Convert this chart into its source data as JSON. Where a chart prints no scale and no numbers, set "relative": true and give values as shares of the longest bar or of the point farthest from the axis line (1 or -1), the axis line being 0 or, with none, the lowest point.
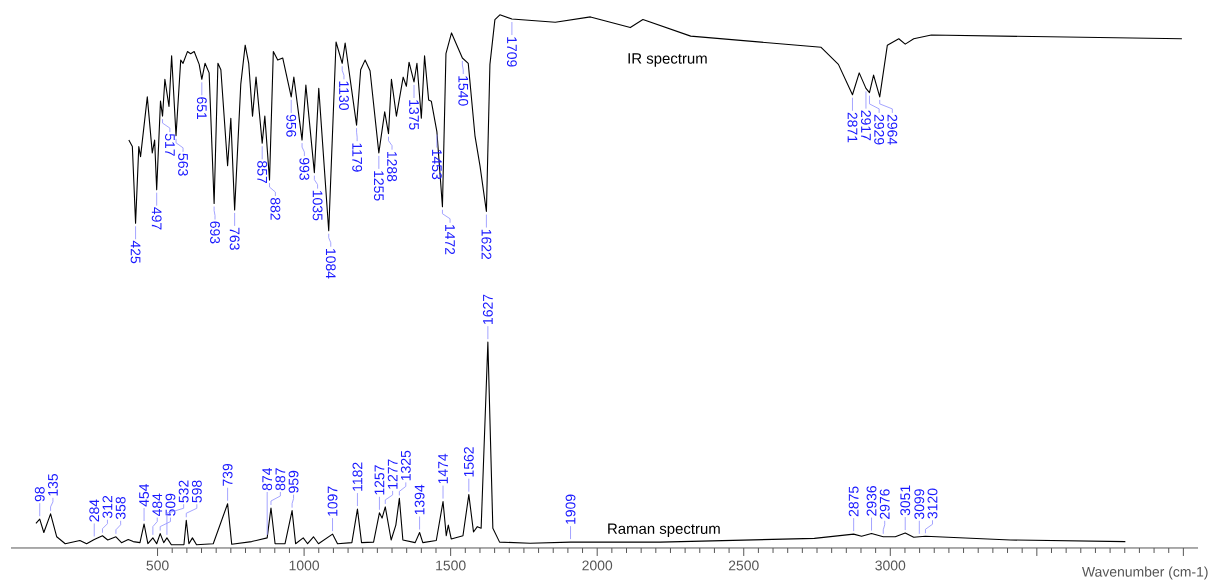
{
  "chart_data": {
    "type": "line",
    "relative": true,
    "xlim": [
      0,
      4050
    ],
    "xlabel": "Wavenumber (cm-1)",
    "xticks": [
      500,
      1000,
      1500,
      2000,
      2500,
      3000,
      {
        "value": 3500,
        "label": null
      },
      {
        "value": 4000,
        "label": null
      }
    ],
    "series": [
      {
        "name": "IR spectrum",
        "color": "#000000",
        "x": [
          402,
          414,
          425,
          436,
          442,
          465,
          482,
          490,
          497,
          510,
          517,
          525,
          539,
          548,
          563,
          579,
          587,
          602,
          613,
          625,
          642,
          651,
          662,
          676,
          693,
          706,
          716,
          739,
          750,
          763,
          784,
          799,
          811,
          824,
          836,
          857,
          866,
          882,
          895,
          910,
          927,
          956,
          965,
          993,
          1006,
          1035,
          1050,
          1084,
          1109,
          1130,
          1140,
          1179,
          1193,
          1208,
          1225,
          1255,
          1275,
          1288,
          1298,
          1315,
          1338,
          1349,
          1358,
          1375,
          1385,
          1400,
          1411,
          1425,
          1434,
          1453,
          1472,
          1484,
          1503,
          1540,
          1560,
          1583,
          1600,
          1622,
          1634,
          1651,
          1668,
          1709,
          1857,
          1977,
          2113,
          2156,
          2319,
          2764,
          2823,
          2871,
          2894,
          2917,
          2929,
          2943,
          2964,
          2990,
          3029,
          3051,
          3080,
          3140,
          3995
        ],
        "values": [
          0.765,
          0.753,
          0.609,
          0.753,
          0.734,
          0.846,
          0.741,
          0.765,
          0.672,
          0.838,
          0.81,
          0.879,
          0.828,
          0.923,
          0.773,
          0.915,
          0.909,
          0.931,
          0.927,
          0.931,
          0.907,
          0.879,
          0.909,
          0.891,
          0.646,
          0.909,
          0.897,
          0.717,
          0.806,
          0.634,
          0.87,
          0.943,
          0.909,
          0.81,
          0.883,
          0.759,
          0.81,
          0.69,
          0.931,
          0.915,
          0.919,
          0.846,
          0.883,
          0.765,
          0.868,
          0.704,
          0.862,
          0.595,
          0.949,
          0.909,
          0.947,
          0.793,
          0.897,
          0.915,
          0.895,
          0.741,
          0.818,
          0.777,
          0.879,
          0.81,
          0.883,
          0.866,
          0.911,
          0.874,
          0.909,
          0.806,
          0.923,
          0.84,
          0.838,
          0.781,
          0.64,
          0.927,
          0.966,
          0.919,
          0.909,
          0.773,
          0.717,
          0.631,
          0.907,
          0.991,
          1.0,
          0.992,
          0.986,
          0.996,
          0.976,
          0.991,
          0.96,
          0.939,
          0.907,
          0.85,
          0.891,
          0.862,
          0.854,
          0.887,
          0.846,
          0.943,
          0.955,
          0.945,
          0.955,
          0.962,
          0.955
        ]
      },
      {
        "name": "Raman spectrum",
        "color": "#000000",
        "x": [
          85,
          98,
          112,
          135,
          156,
          185,
          235,
          258,
          284,
          312,
          330,
          358,
          377,
          400,
          417,
          440,
          454,
          467,
          484,
          497,
          509,
          521,
          532,
          547,
          590,
          598,
          607,
          619,
          633,
          690,
          739,
          753,
          821,
          874,
          887,
          901,
          935,
          959,
          971,
          997,
          1012,
          1032,
          1049,
          1097,
          1114,
          1163,
          1182,
          1196,
          1237,
          1257,
          1266,
          1277,
          1297,
          1313,
          1325,
          1337,
          1379,
          1394,
          1405,
          1451,
          1474,
          1485,
          1492,
          1502,
          1542,
          1562,
          1578,
          1591,
          1604,
          1627,
          1644,
          1667,
          1771,
          1909,
          2215,
          2741,
          2875,
          2902,
          2936,
          2976,
          3017,
          3051,
          3080,
          3099,
          3120,
          3410,
          3802
        ],
        "values": [
          0.046,
          0.054,
          0.029,
          0.064,
          0.021,
          0.008,
          0.014,
          0.008,
          0.016,
          0.023,
          0.015,
          0.021,
          0.01,
          0.016,
          0.012,
          0.01,
          0.045,
          0.008,
          0.019,
          0.008,
          0.027,
          0.01,
          0.019,
          0.006,
          0.006,
          0.052,
          0.008,
          0.019,
          0.006,
          0.008,
          0.083,
          0.007,
          0.012,
          0.019,
          0.075,
          0.008,
          0.008,
          0.07,
          0.008,
          0.019,
          0.008,
          0.021,
          0.008,
          0.026,
          0.008,
          0.01,
          0.073,
          0.01,
          0.011,
          0.066,
          0.056,
          0.077,
          0.015,
          0.043,
          0.093,
          0.015,
          0.01,
          0.029,
          0.01,
          0.014,
          0.087,
          0.023,
          0.043,
          0.017,
          0.023,
          0.1,
          0.03,
          0.04,
          0.037,
          0.386,
          0.037,
          0.011,
          0.009,
          0.011,
          0.011,
          0.018,
          0.026,
          0.022,
          0.027,
          0.021,
          0.021,
          0.028,
          0.02,
          0.021,
          0.022,
          0.015,
          0.012
        ]
      }
    ],
    "annotations": [
      {
        "text": "425",
        "x": 425,
        "y": 0.609
      },
      {
        "text": "497",
        "x": 497,
        "y": 0.672
      },
      {
        "text": "517",
        "x": 517,
        "y": 0.81
      },
      {
        "text": "563",
        "x": 563,
        "y": 0.773
      },
      {
        "text": "651",
        "x": 651,
        "y": 0.879
      },
      {
        "text": "693",
        "x": 693,
        "y": 0.646
      },
      {
        "text": "763",
        "x": 763,
        "y": 0.634
      },
      {
        "text": "857",
        "x": 857,
        "y": 0.759
      },
      {
        "text": "882",
        "x": 882,
        "y": 0.69
      },
      {
        "text": "956",
        "x": 956,
        "y": 0.846
      },
      {
        "text": "993",
        "x": 993,
        "y": 0.765
      },
      {
        "text": "1035",
        "x": 1035,
        "y": 0.704
      },
      {
        "text": "1084",
        "x": 1084,
        "y": 0.595
      },
      {
        "text": "1130",
        "x": 1130,
        "y": 0.909
      },
      {
        "text": "1179",
        "x": 1179,
        "y": 0.793
      },
      {
        "text": "1255",
        "x": 1255,
        "y": 0.741
      },
      {
        "text": "1288",
        "x": 1288,
        "y": 0.777
      },
      {
        "text": "1375",
        "x": 1375,
        "y": 0.874
      },
      {
        "text": "1453",
        "x": 1453,
        "y": 0.781
      },
      {
        "text": "1472",
        "x": 1472,
        "y": 0.64
      },
      {
        "text": "1540",
        "x": 1540,
        "y": 0.919
      },
      {
        "text": "1622",
        "x": 1622,
        "y": 0.631
      },
      {
        "text": "1709",
        "x": 1709,
        "y": 0.992
      },
      {
        "text": "2871",
        "x": 2871,
        "y": 0.85
      },
      {
        "text": "2917",
        "x": 2917,
        "y": 0.862
      },
      {
        "text": "2929",
        "x": 2929,
        "y": 0.854
      },
      {
        "text": "2964",
        "x": 2964,
        "y": 0.846
      },
      {
        "text": "98",
        "x": 98,
        "y": 0.054
      },
      {
        "text": "135",
        "x": 135,
        "y": 0.064
      },
      {
        "text": "284",
        "x": 284,
        "y": 0.016
      },
      {
        "text": "312",
        "x": 312,
        "y": 0.023
      },
      {
        "text": "358",
        "x": 358,
        "y": 0.021
      },
      {
        "text": "454",
        "x": 454,
        "y": 0.045
      },
      {
        "text": "484",
        "x": 484,
        "y": 0.019
      },
      {
        "text": "509",
        "x": 509,
        "y": 0.027
      },
      {
        "text": "532",
        "x": 532,
        "y": 0.019
      },
      {
        "text": "598",
        "x": 598,
        "y": 0.052
      },
      {
        "text": "739",
        "x": 739,
        "y": 0.083
      },
      {
        "text": "874",
        "x": 874,
        "y": 0.019
      },
      {
        "text": "887",
        "x": 887,
        "y": 0.075
      },
      {
        "text": "959",
        "x": 959,
        "y": 0.07
      },
      {
        "text": "1097",
        "x": 1097,
        "y": 0.026
      },
      {
        "text": "1182",
        "x": 1182,
        "y": 0.073
      },
      {
        "text": "1257",
        "x": 1257,
        "y": 0.066
      },
      {
        "text": "1277",
        "x": 1277,
        "y": 0.077
      },
      {
        "text": "1325",
        "x": 1325,
        "y": 0.093
      },
      {
        "text": "1394",
        "x": 1394,
        "y": 0.029
      },
      {
        "text": "1474",
        "x": 1474,
        "y": 0.087
      },
      {
        "text": "1562",
        "x": 1562,
        "y": 0.1
      },
      {
        "text": "1627",
        "x": 1627,
        "y": 0.386
      },
      {
        "text": "1909",
        "x": 1909,
        "y": 0.011
      },
      {
        "text": "2875",
        "x": 2875,
        "y": 0.026
      },
      {
        "text": "2936",
        "x": 2936,
        "y": 0.027
      },
      {
        "text": "2976",
        "x": 2976,
        "y": 0.021
      },
      {
        "text": "3051",
        "x": 3051,
        "y": 0.028
      },
      {
        "text": "3099",
        "x": 3099,
        "y": 0.021
      },
      {
        "text": "3120",
        "x": 3120,
        "y": 0.022
      }
    ]
  }
}
